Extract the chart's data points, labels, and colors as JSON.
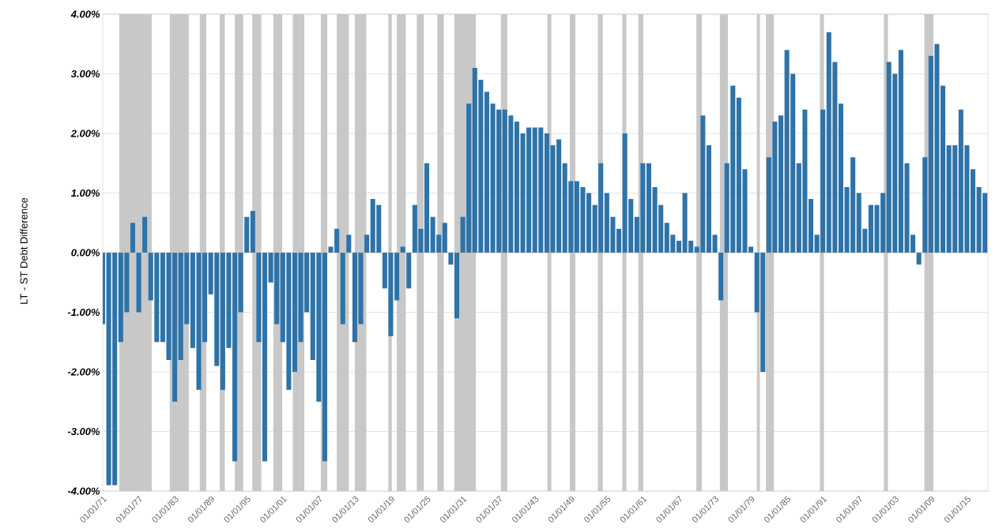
{
  "chart_data": {
    "type": "bar",
    "ylabel": "LT - ST Debt Difference",
    "x": [
      "1871",
      "1872",
      "1873",
      "1874",
      "1875",
      "1876",
      "1877",
      "1878",
      "1879",
      "1880",
      "1881",
      "1882",
      "1883",
      "1884",
      "1885",
      "1886",
      "1887",
      "1888",
      "1889",
      "1890",
      "1891",
      "1892",
      "1893",
      "1894",
      "1895",
      "1896",
      "1897",
      "1898",
      "1899",
      "1900",
      "1901",
      "1902",
      "1903",
      "1904",
      "1905",
      "1906",
      "1907",
      "1908",
      "1909",
      "1910",
      "1911",
      "1912",
      "1913",
      "1914",
      "1915",
      "1916",
      "1917",
      "1918",
      "1919",
      "1920",
      "1921",
      "1922",
      "1923",
      "1924",
      "1925",
      "1926",
      "1927",
      "1928",
      "1929",
      "1930",
      "1931",
      "1932",
      "1933",
      "1934",
      "1935",
      "1936",
      "1937",
      "1938",
      "1939",
      "1940",
      "1941",
      "1942",
      "1943",
      "1944",
      "1945",
      "1946",
      "1947",
      "1948",
      "1949",
      "1950",
      "1951",
      "1952",
      "1953",
      "1954",
      "1955",
      "1956",
      "1957",
      "1958",
      "1959",
      "1960",
      "1961",
      "1962",
      "1963",
      "1964",
      "1965",
      "1966",
      "1967",
      "1968",
      "1969",
      "1970",
      "1971",
      "1972",
      "1973",
      "1974",
      "1975",
      "1976",
      "1977",
      "1978",
      "1979",
      "1980",
      "1981",
      "1982",
      "1983",
      "1984",
      "1985",
      "1986",
      "1987",
      "1988",
      "1989",
      "1990",
      "1991",
      "1992",
      "1993",
      "1994",
      "1995",
      "1996",
      "1997",
      "1998",
      "1999",
      "2000",
      "2001",
      "2002",
      "2003",
      "2004",
      "2005",
      "2006",
      "2007",
      "2008",
      "2009",
      "2010",
      "2011",
      "2012",
      "2013",
      "2014",
      "2015",
      "2016",
      "2017",
      "2018"
    ],
    "values": [
      -1.2,
      -3.9,
      -3.9,
      -1.5,
      -1.0,
      0.5,
      -1.0,
      0.6,
      -0.8,
      -1.5,
      -1.5,
      -1.8,
      -2.5,
      -1.8,
      -1.2,
      -1.6,
      -2.3,
      -1.5,
      -0.7,
      -1.9,
      -2.3,
      -1.6,
      -3.5,
      -1.0,
      0.6,
      0.7,
      -1.5,
      -3.5,
      -0.5,
      -1.2,
      -1.5,
      -2.3,
      -2.0,
      -1.5,
      -1.0,
      -1.8,
      -2.5,
      -3.5,
      0.1,
      0.4,
      -1.2,
      0.3,
      -1.5,
      -1.2,
      0.3,
      0.9,
      0.8,
      -0.6,
      -1.4,
      -0.8,
      0.1,
      -0.6,
      0.8,
      0.4,
      1.5,
      0.6,
      0.3,
      0.5,
      -0.2,
      -1.1,
      0.6,
      2.5,
      3.1,
      2.9,
      2.7,
      2.5,
      2.4,
      2.4,
      2.3,
      2.2,
      2.0,
      2.1,
      2.1,
      2.1,
      2.0,
      1.8,
      1.9,
      1.5,
      1.2,
      1.2,
      1.1,
      1.0,
      0.8,
      1.5,
      1.0,
      0.6,
      0.4,
      2.0,
      0.9,
      0.6,
      1.5,
      1.5,
      1.1,
      0.8,
      0.5,
      0.3,
      0.2,
      1.0,
      0.2,
      0.1,
      2.3,
      1.8,
      0.3,
      -0.8,
      1.5,
      2.8,
      2.6,
      1.4,
      0.1,
      -1.0,
      -2.0,
      1.6,
      2.2,
      2.3,
      3.4,
      3.0,
      1.5,
      2.4,
      0.9,
      0.3,
      2.4,
      3.7,
      3.2,
      2.5,
      1.1,
      1.6,
      1.0,
      0.4,
      0.8,
      0.8,
      1.0,
      3.2,
      3.0,
      3.4,
      1.5,
      0.3,
      -0.2,
      1.6,
      3.3,
      3.5,
      2.8,
      1.8,
      1.8,
      2.4,
      1.8,
      1.4,
      1.1,
      1.0
    ],
    "color": "#2e73a8",
    "xlim": [
      "1871-01",
      "2018-07"
    ],
    "xticks": [
      {
        "value": "1871-01-01",
        "label": "01/01/71"
      },
      {
        "value": "1877-01-01",
        "label": "01/01/77"
      },
      {
        "value": "1883-01-01",
        "label": "01/01/83"
      },
      {
        "value": "1889-01-01",
        "label": "01/01/89"
      },
      {
        "value": "1895-01-01",
        "label": "01/01/95"
      },
      {
        "value": "1901-01-01",
        "label": "01/01/01"
      },
      {
        "value": "1907-01-01",
        "label": "01/01/07"
      },
      {
        "value": "1913-01-01",
        "label": "01/01/13"
      },
      {
        "value": "1919-01-01",
        "label": "01/01/19"
      },
      {
        "value": "1925-01-01",
        "label": "01/01/25"
      },
      {
        "value": "1931-01-01",
        "label": "01/01/31"
      },
      {
        "value": "1937-01-01",
        "label": "01/01/37"
      },
      {
        "value": "1943-01-01",
        "label": "01/01/43"
      },
      {
        "value": "1949-01-01",
        "label": "01/01/49"
      },
      {
        "value": "1955-01-01",
        "label": "01/01/55"
      },
      {
        "value": "1961-01-01",
        "label": "01/01/61"
      },
      {
        "value": "1967-01-01",
        "label": "01/01/67"
      },
      {
        "value": "1973-01-01",
        "label": "01/01/73"
      },
      {
        "value": "1979-01-01",
        "label": "01/01/79"
      },
      {
        "value": "1985-01-01",
        "label": "01/01/85"
      },
      {
        "value": "1991-01-01",
        "label": "01/01/91"
      },
      {
        "value": "1997-01-01",
        "label": "01/01/97"
      },
      {
        "value": "2003-01-01",
        "label": "01/01/03"
      },
      {
        "value": "2009-01-01",
        "label": "01/01/09"
      },
      {
        "value": "2015-01-01",
        "label": "01/01/15"
      }
    ],
    "ylim": [
      -4,
      4
    ],
    "yticks": [
      {
        "value": -4,
        "label": "-4.00%"
      },
      {
        "value": -3,
        "label": "-3.00%"
      },
      {
        "value": -2,
        "label": "-2.00%"
      },
      {
        "value": -1,
        "label": "-1.00%"
      },
      {
        "value": 0,
        "label": "0.00%"
      },
      {
        "value": 1,
        "label": "1.00%"
      },
      {
        "value": 2,
        "label": "2.00%"
      },
      {
        "value": 3,
        "label": "3.00%"
      },
      {
        "value": 4,
        "label": "4.00%"
      }
    ],
    "grid": "y",
    "bands": [
      {
        "axis": "x",
        "from": "1873-10",
        "to": "1879-03",
        "color": "#c8c8c8"
      },
      {
        "axis": "x",
        "from": "1882-03",
        "to": "1885-05",
        "color": "#c8c8c8"
      },
      {
        "axis": "x",
        "from": "1887-03",
        "to": "1888-04",
        "color": "#c8c8c8"
      },
      {
        "axis": "x",
        "from": "1890-07",
        "to": "1891-05",
        "color": "#c8c8c8"
      },
      {
        "axis": "x",
        "from": "1893-01",
        "to": "1894-06",
        "color": "#c8c8c8"
      },
      {
        "axis": "x",
        "from": "1895-12",
        "to": "1897-06",
        "color": "#c8c8c8"
      },
      {
        "axis": "x",
        "from": "1899-06",
        "to": "1900-12",
        "color": "#c8c8c8"
      },
      {
        "axis": "x",
        "from": "1902-09",
        "to": "1904-08",
        "color": "#c8c8c8"
      },
      {
        "axis": "x",
        "from": "1907-05",
        "to": "1908-06",
        "color": "#c8c8c8"
      },
      {
        "axis": "x",
        "from": "1910-01",
        "to": "1912-01",
        "color": "#c8c8c8"
      },
      {
        "axis": "x",
        "from": "1913-01",
        "to": "1914-12",
        "color": "#c8c8c8"
      },
      {
        "axis": "x",
        "from": "1918-08",
        "to": "1919-03",
        "color": "#c8c8c8"
      },
      {
        "axis": "x",
        "from": "1920-01",
        "to": "1921-07",
        "color": "#c8c8c8"
      },
      {
        "axis": "x",
        "from": "1923-05",
        "to": "1924-07",
        "color": "#c8c8c8"
      },
      {
        "axis": "x",
        "from": "1926-10",
        "to": "1927-11",
        "color": "#c8c8c8"
      },
      {
        "axis": "x",
        "from": "1929-08",
        "to": "1933-03",
        "color": "#c8c8c8"
      },
      {
        "axis": "x",
        "from": "1937-05",
        "to": "1938-06",
        "color": "#c8c8c8"
      },
      {
        "axis": "x",
        "from": "1945-02",
        "to": "1945-10",
        "color": "#c8c8c8"
      },
      {
        "axis": "x",
        "from": "1948-11",
        "to": "1949-10",
        "color": "#c8c8c8"
      },
      {
        "axis": "x",
        "from": "1953-07",
        "to": "1954-05",
        "color": "#c8c8c8"
      },
      {
        "axis": "x",
        "from": "1957-08",
        "to": "1958-04",
        "color": "#c8c8c8"
      },
      {
        "axis": "x",
        "from": "1960-04",
        "to": "1961-02",
        "color": "#c8c8c8"
      },
      {
        "axis": "x",
        "from": "1969-12",
        "to": "1970-11",
        "color": "#c8c8c8"
      },
      {
        "axis": "x",
        "from": "1973-11",
        "to": "1975-03",
        "color": "#c8c8c8"
      },
      {
        "axis": "x",
        "from": "1980-01",
        "to": "1980-07",
        "color": "#c8c8c8"
      },
      {
        "axis": "x",
        "from": "1981-07",
        "to": "1982-11",
        "color": "#c8c8c8"
      },
      {
        "axis": "x",
        "from": "1990-07",
        "to": "1991-03",
        "color": "#c8c8c8"
      },
      {
        "axis": "x",
        "from": "2001-03",
        "to": "2001-11",
        "color": "#c8c8c8"
      },
      {
        "axis": "x",
        "from": "2007-12",
        "to": "2009-06",
        "color": "#c8c8c8"
      }
    ]
  }
}
